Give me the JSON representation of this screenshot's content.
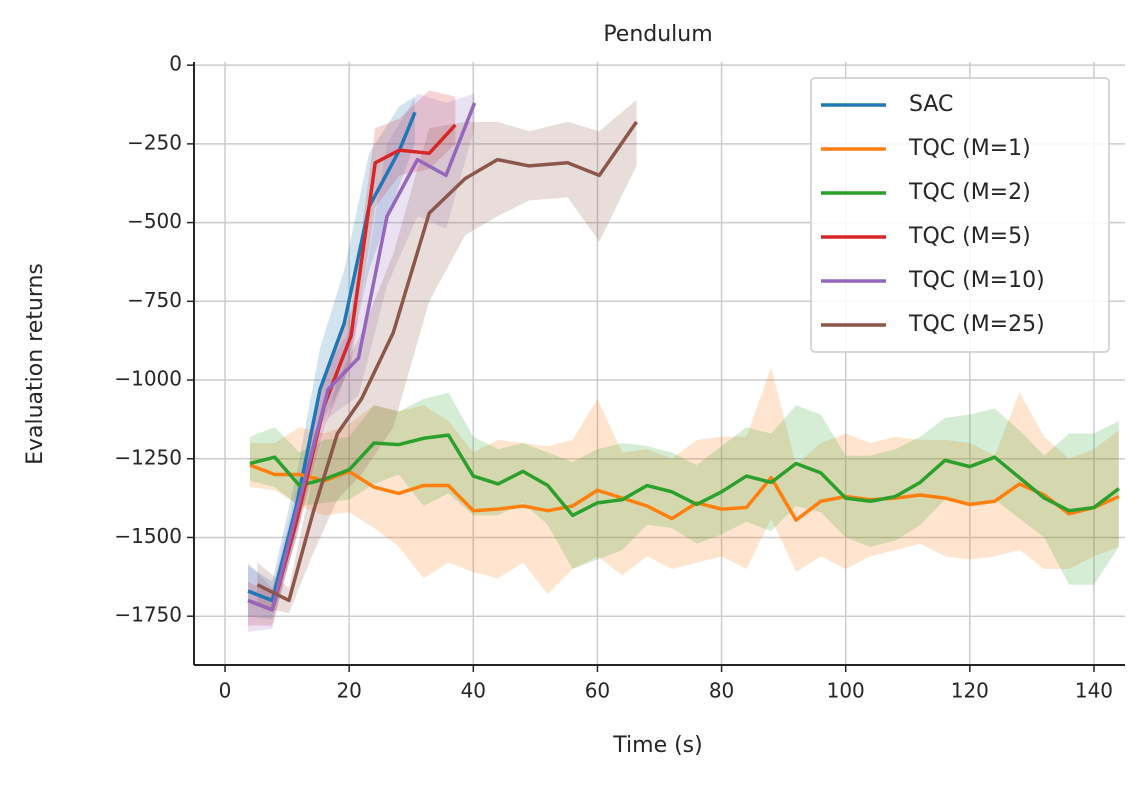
{
  "chart_data": {
    "type": "line",
    "title": "Pendulum",
    "x_label": "Time (s)",
    "y_label": "Evaluation returns",
    "xlim": [
      -5,
      145
    ],
    "ylim": [
      -1905,
      10
    ],
    "xticks": [
      0,
      20,
      40,
      60,
      80,
      100,
      120,
      140
    ],
    "yticks": [
      0,
      {
        "value": -250,
        "label": "−250"
      },
      {
        "value": -500,
        "label": "−500"
      },
      {
        "value": -750,
        "label": "−750"
      },
      {
        "value": -1000,
        "label": "−1000"
      },
      {
        "value": -1250,
        "label": "−1250"
      },
      {
        "value": -1500,
        "label": "−1500"
      },
      {
        "value": -1750,
        "label": "−1750"
      }
    ],
    "grid": true,
    "legend": "upper right",
    "series": [
      {
        "name": "SAC",
        "color": "#1f77b4",
        "x": [
          3.7,
          7.6,
          11.5,
          15.3,
          19.2,
          23.2,
          28.1,
          30.6
        ],
        "values": [
          -1670,
          -1700,
          -1400,
          -1030,
          -820,
          -450,
          -270,
          -150
        ],
        "lower": [
          -1750,
          -1760,
          -1500,
          -1150,
          -1000,
          -650,
          -380,
          -250
        ],
        "upper": [
          -1590,
          -1640,
          -1300,
          -900,
          -650,
          -280,
          -130,
          -100
        ]
      },
      {
        "name": "TQC (M=1)",
        "color": "#ff7f0e",
        "x": [
          4,
          8,
          12,
          16,
          20,
          24,
          28,
          32,
          36,
          40,
          44,
          48,
          52,
          56,
          60,
          64,
          68,
          72,
          76,
          80,
          84,
          88,
          92,
          96,
          100,
          104,
          108,
          112,
          116,
          120,
          124,
          128,
          132,
          136,
          140,
          144
        ],
        "values": [
          -1270,
          -1300,
          -1300,
          -1320,
          -1290,
          -1340,
          -1360,
          -1335,
          -1335,
          -1415,
          -1410,
          -1400,
          -1415,
          -1400,
          -1350,
          -1375,
          -1400,
          -1440,
          -1390,
          -1410,
          -1405,
          -1310,
          -1445,
          -1385,
          -1370,
          -1380,
          -1375,
          -1365,
          -1375,
          -1395,
          -1385,
          -1330,
          -1365,
          -1425,
          -1405,
          -1370
        ],
        "lower": [
          -1340,
          -1350,
          -1400,
          -1430,
          -1420,
          -1470,
          -1530,
          -1630,
          -1580,
          -1610,
          -1630,
          -1580,
          -1680,
          -1600,
          -1560,
          -1620,
          -1560,
          -1600,
          -1580,
          -1560,
          -1600,
          -1440,
          -1610,
          -1560,
          -1600,
          -1560,
          -1540,
          -1520,
          -1560,
          -1570,
          -1560,
          -1540,
          -1600,
          -1600,
          -1560,
          -1530
        ],
        "upper": [
          -1200,
          -1200,
          -1150,
          -1170,
          -1140,
          -1080,
          -1100,
          -1080,
          -1130,
          -1230,
          -1190,
          -1200,
          -1210,
          -1190,
          -1060,
          -1230,
          -1220,
          -1250,
          -1190,
          -1180,
          -1180,
          -960,
          -1270,
          -1200,
          -1170,
          -1200,
          -1180,
          -1190,
          -1190,
          -1200,
          -1240,
          -1040,
          -1180,
          -1250,
          -1220,
          -1160
        ]
      },
      {
        "name": "TQC (M=2)",
        "color": "#2ca02c",
        "x": [
          4,
          8,
          12,
          16,
          20,
          24,
          28,
          32,
          36,
          40,
          44,
          48,
          52,
          56,
          60,
          64,
          68,
          72,
          76,
          80,
          84,
          88,
          92,
          96,
          100,
          104,
          108,
          112,
          116,
          120,
          124,
          128,
          132,
          136,
          140,
          144
        ],
        "values": [
          -1265,
          -1245,
          -1335,
          -1315,
          -1285,
          -1200,
          -1205,
          -1185,
          -1175,
          -1305,
          -1330,
          -1290,
          -1335,
          -1430,
          -1390,
          -1380,
          -1335,
          -1355,
          -1395,
          -1355,
          -1305,
          -1325,
          -1265,
          -1295,
          -1375,
          -1385,
          -1370,
          -1325,
          -1255,
          -1275,
          -1245,
          -1310,
          -1375,
          -1415,
          -1405,
          -1345
        ],
        "lower": [
          -1320,
          -1340,
          -1400,
          -1390,
          -1380,
          -1330,
          -1300,
          -1400,
          -1360,
          -1430,
          -1430,
          -1390,
          -1460,
          -1600,
          -1570,
          -1540,
          -1460,
          -1470,
          -1520,
          -1490,
          -1450,
          -1480,
          -1400,
          -1420,
          -1500,
          -1530,
          -1510,
          -1460,
          -1380,
          -1400,
          -1380,
          -1440,
          -1500,
          -1650,
          -1650,
          -1530
        ],
        "upper": [
          -1180,
          -1150,
          -1230,
          -1190,
          -1180,
          -1080,
          -1100,
          -1060,
          -1040,
          -1180,
          -1220,
          -1200,
          -1230,
          -1260,
          -1220,
          -1200,
          -1210,
          -1230,
          -1270,
          -1210,
          -1150,
          -1170,
          -1080,
          -1110,
          -1240,
          -1240,
          -1220,
          -1180,
          -1120,
          -1110,
          -1090,
          -1160,
          -1240,
          -1170,
          -1170,
          -1130
        ]
      },
      {
        "name": "TQC (M=5)",
        "color": "#d62728",
        "x": [
          3.7,
          7.6,
          11.5,
          16,
          20.3,
          24.2,
          28.1,
          32.9,
          37.1
        ],
        "values": [
          -1700,
          -1730,
          -1450,
          -1080,
          -860,
          -310,
          -270,
          -280,
          -190
        ],
        "lower": [
          -1780,
          -1780,
          -1500,
          -1150,
          -950,
          -450,
          -350,
          -330,
          -250
        ],
        "upper": [
          -1640,
          -1680,
          -1400,
          -1000,
          -780,
          -200,
          -170,
          -80,
          -100
        ]
      },
      {
        "name": "TQC (M=10)",
        "color": "#9467bd",
        "x": [
          3.7,
          7.6,
          11.5,
          16.6,
          21.5,
          26.1,
          31,
          35.6,
          40.2
        ],
        "values": [
          -1700,
          -1730,
          -1420,
          -1030,
          -930,
          -480,
          -300,
          -350,
          -120
        ],
        "lower": [
          -1800,
          -1790,
          -1480,
          -1120,
          -1050,
          -700,
          -480,
          -520,
          -200
        ],
        "upper": [
          -1580,
          -1660,
          -1350,
          -950,
          -800,
          -250,
          -90,
          -120,
          -90
        ]
      },
      {
        "name": "TQC (M=25)",
        "color": "#8c564b",
        "x": [
          5.2,
          10.3,
          14.2,
          18.1,
          22,
          27.1,
          32.9,
          38.7,
          43.9,
          49,
          55.2,
          60.3,
          66.3
        ],
        "values": [
          -1650,
          -1700,
          -1420,
          -1170,
          -1060,
          -850,
          -470,
          -360,
          -300,
          -320,
          -310,
          -350,
          -180
        ],
        "lower": [
          -1720,
          -1740,
          -1550,
          -1380,
          -1300,
          -1150,
          -750,
          -540,
          -480,
          -430,
          -420,
          -560,
          -320
        ],
        "upper": [
          -1580,
          -1660,
          -1300,
          -1000,
          -850,
          -600,
          -200,
          -180,
          -180,
          -210,
          -180,
          -210,
          -110
        ]
      }
    ]
  }
}
